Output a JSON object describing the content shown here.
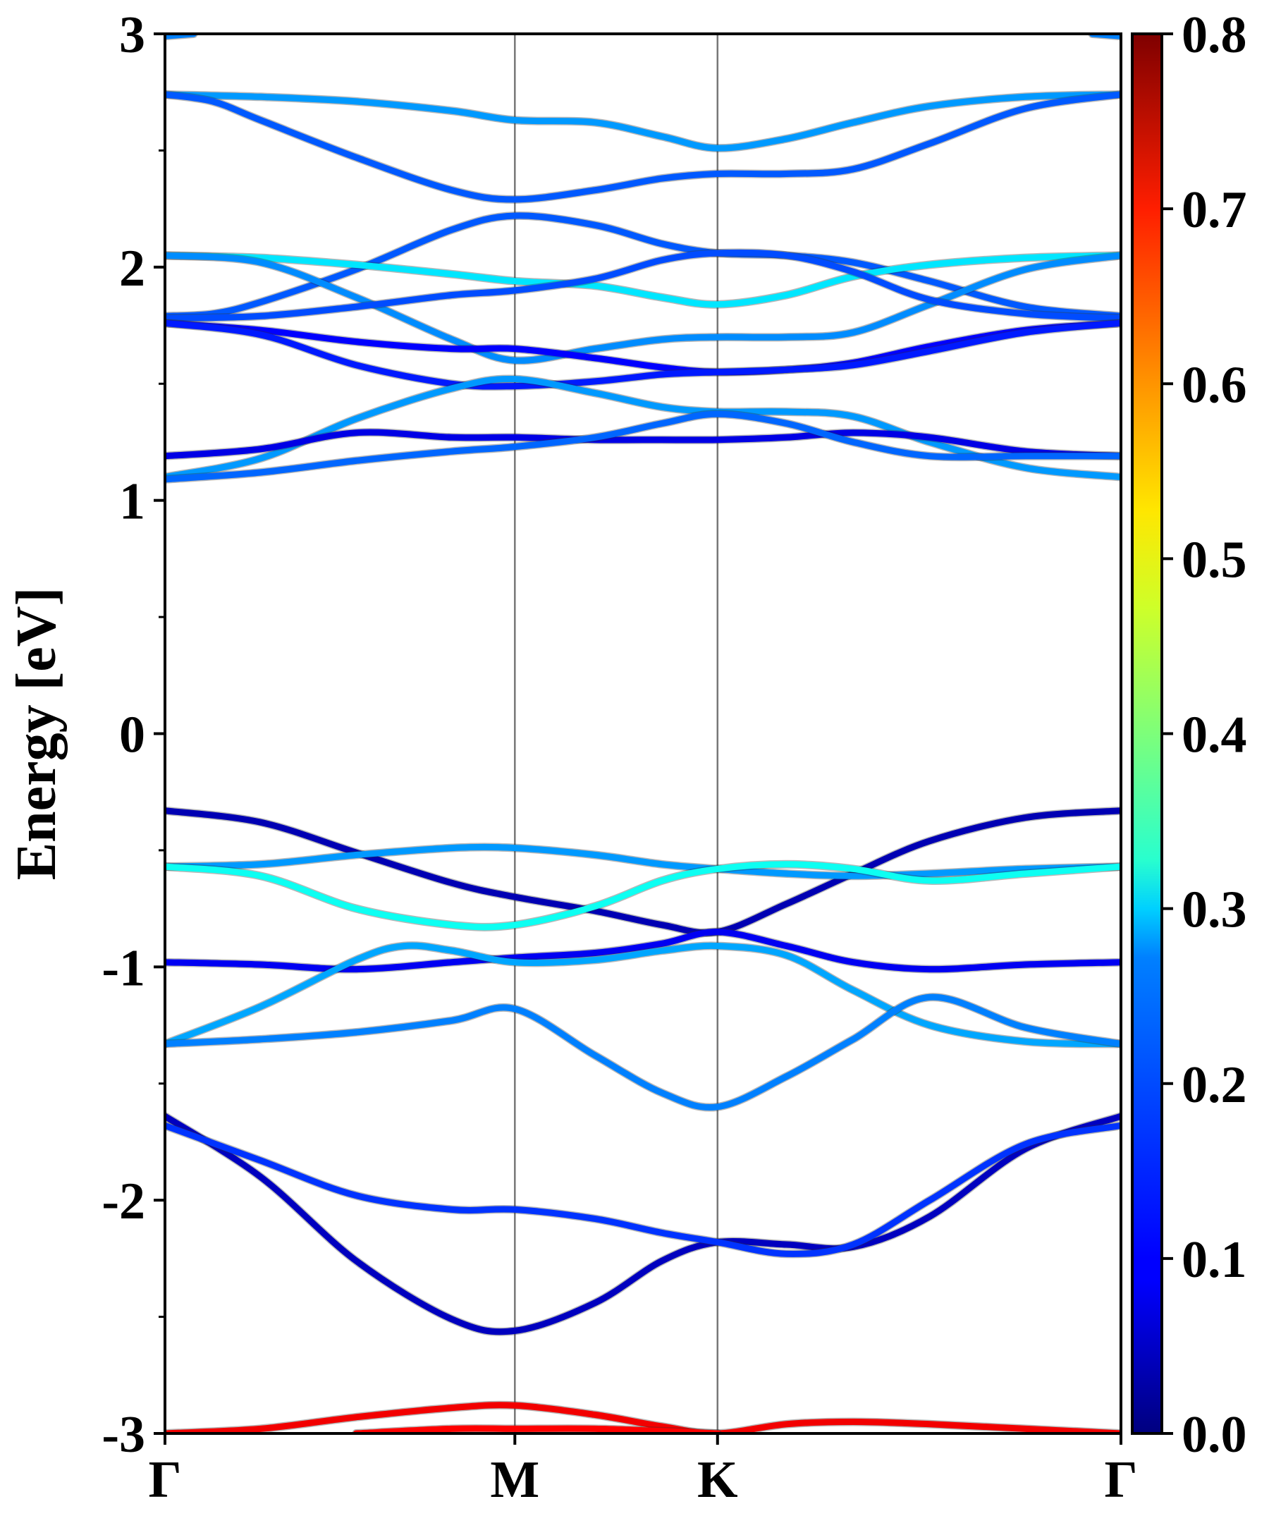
{
  "chart_data": {
    "type": "line",
    "title": "",
    "ylabel": "Energy [eV]",
    "xlabel": "",
    "ylim": [
      -3,
      3
    ],
    "yticks": [
      "-3",
      "-2",
      "-1",
      "0",
      "1",
      "2",
      "3"
    ],
    "y_tick_values": [
      -3,
      -2,
      -1,
      0,
      1,
      2,
      3
    ],
    "y_minor_tick_values": [
      -2.5,
      -1.5,
      -0.5,
      0.5,
      1.5,
      2.5
    ],
    "xlim": [
      0,
      1
    ],
    "kpoint_labels": [
      "Γ",
      "M",
      "K",
      "Γ"
    ],
    "kpoint_positions": [
      0,
      0.366,
      0.578,
      1
    ],
    "colorbar": {
      "colormap": "jet",
      "range": [
        0,
        0.8
      ],
      "ticks": [
        "0.0",
        "0.1",
        "0.2",
        "0.3",
        "0.4",
        "0.5",
        "0.6",
        "0.7",
        "0.8"
      ],
      "tick_values": [
        0,
        0.1,
        0.2,
        0.3,
        0.4,
        0.5,
        0.6,
        0.7,
        0.8
      ]
    },
    "grid": false,
    "series": [
      {
        "x": [
          0,
          0.1,
          0.2,
          0.3,
          0.366,
          0.45,
          0.52,
          0.578,
          0.65,
          0.72,
          0.8,
          0.9,
          1
        ],
        "y": [
          2.74,
          2.73,
          2.71,
          2.67,
          2.63,
          2.62,
          2.56,
          2.51,
          2.55,
          2.62,
          2.69,
          2.73,
          2.74
        ],
        "weight": 0.22
      },
      {
        "x": [
          0,
          0.05,
          0.1,
          0.2,
          0.3,
          0.366,
          0.45,
          0.52,
          0.578,
          0.65,
          0.72,
          0.8,
          0.9,
          1
        ],
        "y": [
          2.74,
          2.71,
          2.63,
          2.47,
          2.33,
          2.29,
          2.33,
          2.38,
          2.4,
          2.4,
          2.42,
          2.53,
          2.68,
          2.74
        ],
        "weight": 0.17
      },
      {
        "x": [
          0,
          0.05,
          0.1,
          0.2,
          0.3,
          0.366,
          0.45,
          0.52,
          0.578,
          0.65,
          0.72,
          0.8,
          0.9,
          1
        ],
        "y": [
          1.79,
          1.8,
          1.85,
          1.99,
          2.16,
          2.22,
          2.18,
          2.1,
          2.06,
          2.05,
          2.02,
          1.94,
          1.83,
          1.79
        ],
        "weight": 0.17
      },
      {
        "x": [
          0,
          0.1,
          0.2,
          0.3,
          0.366,
          0.45,
          0.52,
          0.578,
          0.65,
          0.72,
          0.8,
          0.9,
          1
        ],
        "y": [
          2.05,
          2.04,
          2.01,
          1.97,
          1.94,
          1.92,
          1.87,
          1.84,
          1.88,
          1.96,
          2.01,
          2.04,
          2.05
        ],
        "weight": 0.28
      },
      {
        "x": [
          0,
          0.1,
          0.2,
          0.3,
          0.366,
          0.45,
          0.52,
          0.578,
          0.65,
          0.72,
          0.8,
          0.9,
          1
        ],
        "y": [
          2.05,
          2.02,
          1.87,
          1.69,
          1.6,
          1.65,
          1.69,
          1.7,
          1.7,
          1.72,
          1.84,
          1.99,
          2.05
        ],
        "weight": 0.21
      },
      {
        "x": [
          0,
          0.1,
          0.2,
          0.3,
          0.366,
          0.45,
          0.52,
          0.578,
          0.65,
          0.72,
          0.8,
          0.9,
          1
        ],
        "y": [
          1.78,
          1.79,
          1.83,
          1.88,
          1.9,
          1.95,
          2.03,
          2.06,
          2.05,
          1.98,
          1.86,
          1.8,
          1.78
        ],
        "weight": 0.16
      },
      {
        "x": [
          0,
          0.1,
          0.2,
          0.3,
          0.366,
          0.45,
          0.52,
          0.578,
          0.65,
          0.72,
          0.8,
          0.9,
          1
        ],
        "y": [
          1.76,
          1.73,
          1.68,
          1.65,
          1.65,
          1.61,
          1.57,
          1.55,
          1.56,
          1.59,
          1.66,
          1.73,
          1.76
        ],
        "weight": 0.1
      },
      {
        "x": [
          0,
          0.1,
          0.2,
          0.3,
          0.366,
          0.45,
          0.52,
          0.578,
          0.65,
          0.72,
          0.8,
          0.9,
          1
        ],
        "y": [
          1.76,
          1.71,
          1.58,
          1.5,
          1.49,
          1.51,
          1.54,
          1.55,
          1.56,
          1.58,
          1.64,
          1.72,
          1.76
        ],
        "weight": 0.12
      },
      {
        "x": [
          0,
          0.1,
          0.2,
          0.3,
          0.366,
          0.45,
          0.52,
          0.578,
          0.65,
          0.72,
          0.8,
          0.9,
          1
        ],
        "y": [
          1.1,
          1.18,
          1.35,
          1.48,
          1.52,
          1.46,
          1.4,
          1.38,
          1.38,
          1.36,
          1.25,
          1.14,
          1.1
        ],
        "weight": 0.22
      },
      {
        "x": [
          0,
          0.1,
          0.2,
          0.3,
          0.366,
          0.45,
          0.52,
          0.578,
          0.65,
          0.72,
          0.8,
          0.9,
          1
        ],
        "y": [
          1.19,
          1.22,
          1.29,
          1.27,
          1.27,
          1.26,
          1.26,
          1.26,
          1.27,
          1.29,
          1.27,
          1.21,
          1.19
        ],
        "weight": 0.08
      },
      {
        "x": [
          0,
          0.1,
          0.2,
          0.3,
          0.366,
          0.45,
          0.52,
          0.578,
          0.65,
          0.72,
          0.8,
          0.9,
          1
        ],
        "y": [
          1.09,
          1.12,
          1.17,
          1.21,
          1.23,
          1.27,
          1.33,
          1.37,
          1.33,
          1.25,
          1.19,
          1.19,
          1.19
        ],
        "weight": 0.18
      },
      {
        "x": [
          0,
          0.1,
          0.2,
          0.3,
          0.366,
          0.45,
          0.52,
          0.578,
          0.65,
          0.72,
          0.8,
          0.9,
          1
        ],
        "y": [
          -0.33,
          -0.38,
          -0.51,
          -0.64,
          -0.7,
          -0.76,
          -0.82,
          -0.85,
          -0.73,
          -0.6,
          -0.46,
          -0.36,
          -0.33
        ],
        "weight": 0.04
      },
      {
        "x": [
          0,
          0.1,
          0.2,
          0.3,
          0.366,
          0.45,
          0.52,
          0.578,
          0.65,
          0.72,
          0.8,
          0.9,
          1
        ],
        "y": [
          -0.57,
          -0.56,
          -0.52,
          -0.49,
          -0.49,
          -0.52,
          -0.56,
          -0.58,
          -0.6,
          -0.61,
          -0.6,
          -0.58,
          -0.57
        ],
        "weight": 0.22
      },
      {
        "x": [
          0,
          0.1,
          0.2,
          0.3,
          0.366,
          0.45,
          0.52,
          0.578,
          0.65,
          0.72,
          0.8,
          0.9,
          1
        ],
        "y": [
          -0.57,
          -0.61,
          -0.75,
          -0.82,
          -0.82,
          -0.74,
          -0.63,
          -0.58,
          -0.56,
          -0.58,
          -0.63,
          -0.6,
          -0.57
        ],
        "weight": 0.31
      },
      {
        "x": [
          0,
          0.1,
          0.2,
          0.3,
          0.366,
          0.45,
          0.52,
          0.578,
          0.65,
          0.72,
          0.8,
          0.9,
          1
        ],
        "y": [
          -0.98,
          -0.99,
          -1.01,
          -0.98,
          -0.96,
          -0.94,
          -0.9,
          -0.85,
          -0.91,
          -0.98,
          -1.01,
          -0.99,
          -0.98
        ],
        "weight": 0.09
      },
      {
        "x": [
          0,
          0.1,
          0.2,
          0.25,
          0.3,
          0.366,
          0.45,
          0.52,
          0.578,
          0.65,
          0.72,
          0.8,
          0.9,
          1
        ],
        "y": [
          -1.33,
          -1.17,
          -0.97,
          -0.91,
          -0.93,
          -0.98,
          -0.97,
          -0.93,
          -0.91,
          -0.95,
          -1.1,
          -1.25,
          -1.32,
          -1.33
        ],
        "weight": 0.23
      },
      {
        "x": [
          0,
          0.1,
          0.2,
          0.3,
          0.366,
          0.45,
          0.52,
          0.578,
          0.65,
          0.72,
          0.8,
          0.9,
          1
        ],
        "y": [
          -1.33,
          -1.31,
          -1.28,
          -1.23,
          -1.18,
          -1.38,
          -1.54,
          -1.6,
          -1.47,
          -1.31,
          -1.13,
          -1.26,
          -1.33
        ],
        "weight": 0.2
      },
      {
        "x": [
          0,
          0.1,
          0.2,
          0.3,
          0.366,
          0.45,
          0.52,
          0.578,
          0.65,
          0.72,
          0.8,
          0.9,
          1
        ],
        "y": [
          -1.64,
          -1.9,
          -2.26,
          -2.51,
          -2.56,
          -2.44,
          -2.26,
          -2.18,
          -2.19,
          -2.2,
          -2.07,
          -1.78,
          -1.64
        ],
        "weight": 0.05
      },
      {
        "x": [
          0,
          0.1,
          0.2,
          0.3,
          0.366,
          0.45,
          0.52,
          0.578,
          0.65,
          0.72,
          0.8,
          0.9,
          1
        ],
        "y": [
          -1.68,
          -1.83,
          -1.98,
          -2.04,
          -2.04,
          -2.08,
          -2.14,
          -2.18,
          -2.23,
          -2.19,
          -2.0,
          -1.76,
          -1.68
        ],
        "weight": 0.14
      },
      {
        "x": [
          0,
          0.1,
          0.2,
          0.3,
          0.366,
          0.45,
          0.52,
          0.578,
          0.65,
          0.72,
          0.8,
          0.9,
          1
        ],
        "y": [
          -3.0,
          -2.98,
          -2.93,
          -2.89,
          -2.88,
          -2.92,
          -2.97,
          -3.0,
          -2.96,
          -2.95,
          -2.96,
          -2.98,
          -3.0
        ],
        "weight": 0.71
      },
      {
        "x": [
          0.2,
          0.3,
          0.366,
          0.45,
          0.52,
          0.578
        ],
        "y": [
          -3.0,
          -2.98,
          -2.98,
          -2.98,
          -2.99,
          -3.0
        ],
        "weight": 0.7
      },
      {
        "x": [
          0,
          0.03
        ],
        "y": [
          2.99,
          3.0
        ],
        "weight": 0.2
      },
      {
        "x": [
          0.97,
          1
        ],
        "y": [
          3.0,
          2.99
        ],
        "weight": 0.2
      }
    ]
  }
}
